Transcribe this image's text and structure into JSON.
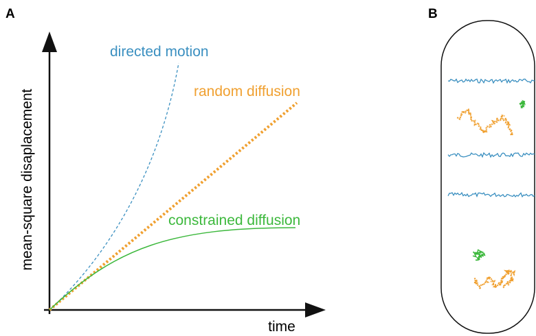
{
  "panel_a": {
    "label": "A",
    "y_axis_label": "mean-square disaplacement",
    "x_axis_label": "time",
    "curves": [
      {
        "label": "directed motion"
      },
      {
        "label": "random diffusion"
      },
      {
        "label": "constrained diffusion"
      }
    ]
  },
  "panel_b": {
    "label": "B"
  }
}
